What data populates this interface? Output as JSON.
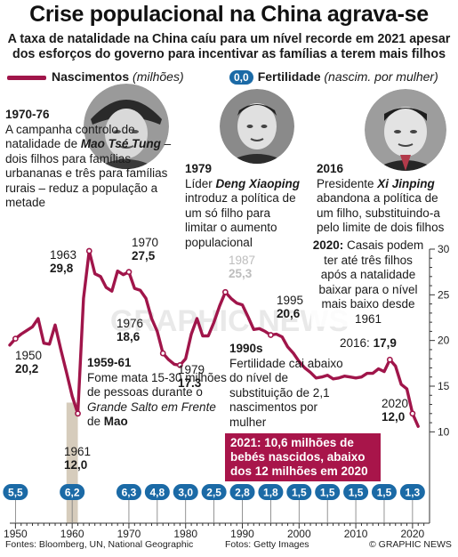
{
  "title": "Crise populacional na China agrava-se",
  "subtitle": "A taxa de natalidade na China caíu para um nível recorde em 2021 apesar dos esforços do governo para incentivar as famílias a terem mais filhos",
  "legend": {
    "births_label": "Nascimentos",
    "births_unit": "(milhões)",
    "fertility_sample": "0,0",
    "fertility_label": "Fertilidade",
    "fertility_unit": "(nascim. por mulher)"
  },
  "annotations": {
    "a1970_year": "1970-76",
    "a1970_t1": "A campanha controlo de natalidade de ",
    "a1970_mao": "Mao Tsé Tung",
    "a1970_t2": " – dois filhos para famílias urbananas e três para famílias rurais – reduz a população a metade",
    "a1979_year": "1979",
    "a1979_t1": "Líder ",
    "a1979_deng": "Deng Xiaoping",
    "a1979_t2": " introduz a política de um só filho para limitar o aumento populacional",
    "a2016_year": "2016",
    "a2016_t1": "Presidente ",
    "a2016_xi": "Xi Jinping",
    "a2016_t2": " abandona a política de um filho, substituindo-a pelo limite de dois filhos",
    "a2020_bold": "2020:",
    "a2020_t": " Casais podem ter até três filhos após a natalidade baixar para o nível mais baixo desde 1961",
    "a1959_year": "1959-61",
    "a1959_t1": "Fome mata 15-30 milhões de pessoas durante o ",
    "a1959_leap": "Grande Salto em Frente",
    "a1959_t2": " de ",
    "a1959_mao": "Mao",
    "a1990_year": "1990s",
    "a1990_t": "Fertilidade cai abaixo do nível de substituição de 2,1 nascimentos por mulher",
    "highlight": "2021: 10,6 milhões de bebés nascidos, abaixo dos 12 milhões em 2020"
  },
  "labels": [
    {
      "year": "1950",
      "value": "20,2"
    },
    {
      "year": "1961",
      "value": "12,0"
    },
    {
      "year": "1963",
      "value": "29,8"
    },
    {
      "year": "1970",
      "value": "27,5"
    },
    {
      "year": "1976",
      "value": "18,6"
    },
    {
      "year": "1979",
      "value": "17.3"
    },
    {
      "year": "1987",
      "value": "25,3"
    },
    {
      "year": "1995",
      "value": "20,6"
    },
    {
      "year": "2016:",
      "value": "17,9"
    },
    {
      "year": "2020",
      "value": "12,0"
    }
  ],
  "watermark": "GRAPHIC NEWS",
  "footer": {
    "sources": "Fontes: Bloomberg, UN, National Geographic",
    "photos": "Fotos: Getty Images",
    "credit": "© GRAPHIC NEWS"
  },
  "colors": {
    "births": "#a0154a",
    "fertility_pill": "#1b6aa6",
    "famine_band": "#d6ccbc",
    "highlight_box": "#a8154a"
  },
  "chart_data": {
    "type": "line",
    "title": "Crise populacional na China agrava-se",
    "xlabel": "",
    "ylabel": "",
    "xlim": [
      1949,
      2023
    ],
    "ylim": [
      0,
      30
    ],
    "x_ticks": [
      1950,
      1960,
      1970,
      1980,
      1990,
      2000,
      2010,
      2020
    ],
    "y_ticks": [
      10,
      15,
      20,
      25,
      30
    ],
    "grid": false,
    "shaded_period": [
      1959,
      1961
    ],
    "series": [
      {
        "name": "Nascimentos (milhões)",
        "x": [
          1949,
          1950,
          1951,
          1952,
          1953,
          1954,
          1955,
          1956,
          1957,
          1958,
          1959,
          1960,
          1961,
          1962,
          1963,
          1964,
          1965,
          1966,
          1967,
          1968,
          1969,
          1970,
          1971,
          1972,
          1973,
          1974,
          1975,
          1976,
          1977,
          1978,
          1979,
          1980,
          1981,
          1982,
          1983,
          1984,
          1985,
          1986,
          1987,
          1988,
          1989,
          1990,
          1991,
          1992,
          1993,
          1994,
          1995,
          1996,
          1997,
          1998,
          1999,
          2000,
          2001,
          2002,
          2003,
          2004,
          2005,
          2006,
          2007,
          2008,
          2009,
          2010,
          2011,
          2012,
          2013,
          2014,
          2015,
          2016,
          2017,
          2018,
          2019,
          2020,
          2021
        ],
        "y": [
          19.5,
          20.2,
          20.7,
          21.1,
          21.5,
          22.4,
          19.7,
          19.6,
          21.7,
          19.0,
          16.5,
          13.9,
          12.0,
          24.6,
          29.8,
          27.3,
          27.0,
          25.8,
          25.4,
          27.6,
          27.2,
          27.5,
          25.7,
          25.5,
          24.6,
          22.4,
          21.0,
          18.6,
          17.9,
          17.4,
          17.3,
          18.0,
          20.7,
          22.4,
          20.5,
          20.5,
          22.0,
          23.8,
          25.3,
          24.6,
          24.1,
          23.9,
          22.6,
          21.2,
          21.3,
          21.0,
          20.6,
          20.7,
          20.4,
          19.3,
          18.6,
          17.7,
          17.0,
          16.5,
          15.9,
          16.0,
          16.2,
          15.8,
          15.9,
          16.1,
          16.0,
          15.9,
          16.0,
          16.4,
          16.4,
          16.9,
          16.6,
          17.9,
          17.2,
          15.2,
          14.7,
          12.0,
          10.6
        ]
      }
    ],
    "fertility": [
      {
        "year": 1950,
        "value": "5,5"
      },
      {
        "year": 1960,
        "value": "6,2"
      },
      {
        "year": 1970,
        "value": "6,3"
      },
      {
        "year": 1975,
        "value": "4,8"
      },
      {
        "year": 1980,
        "value": "3,0"
      },
      {
        "year": 1985,
        "value": "2,5"
      },
      {
        "year": 1990,
        "value": "2,8"
      },
      {
        "year": 1995,
        "value": "1,8"
      },
      {
        "year": 2000,
        "value": "1,5"
      },
      {
        "year": 2005,
        "value": "1,5"
      },
      {
        "year": 2010,
        "value": "1,5"
      },
      {
        "year": 2015,
        "value": "1,5"
      },
      {
        "year": 2020,
        "value": "1,3"
      }
    ]
  }
}
